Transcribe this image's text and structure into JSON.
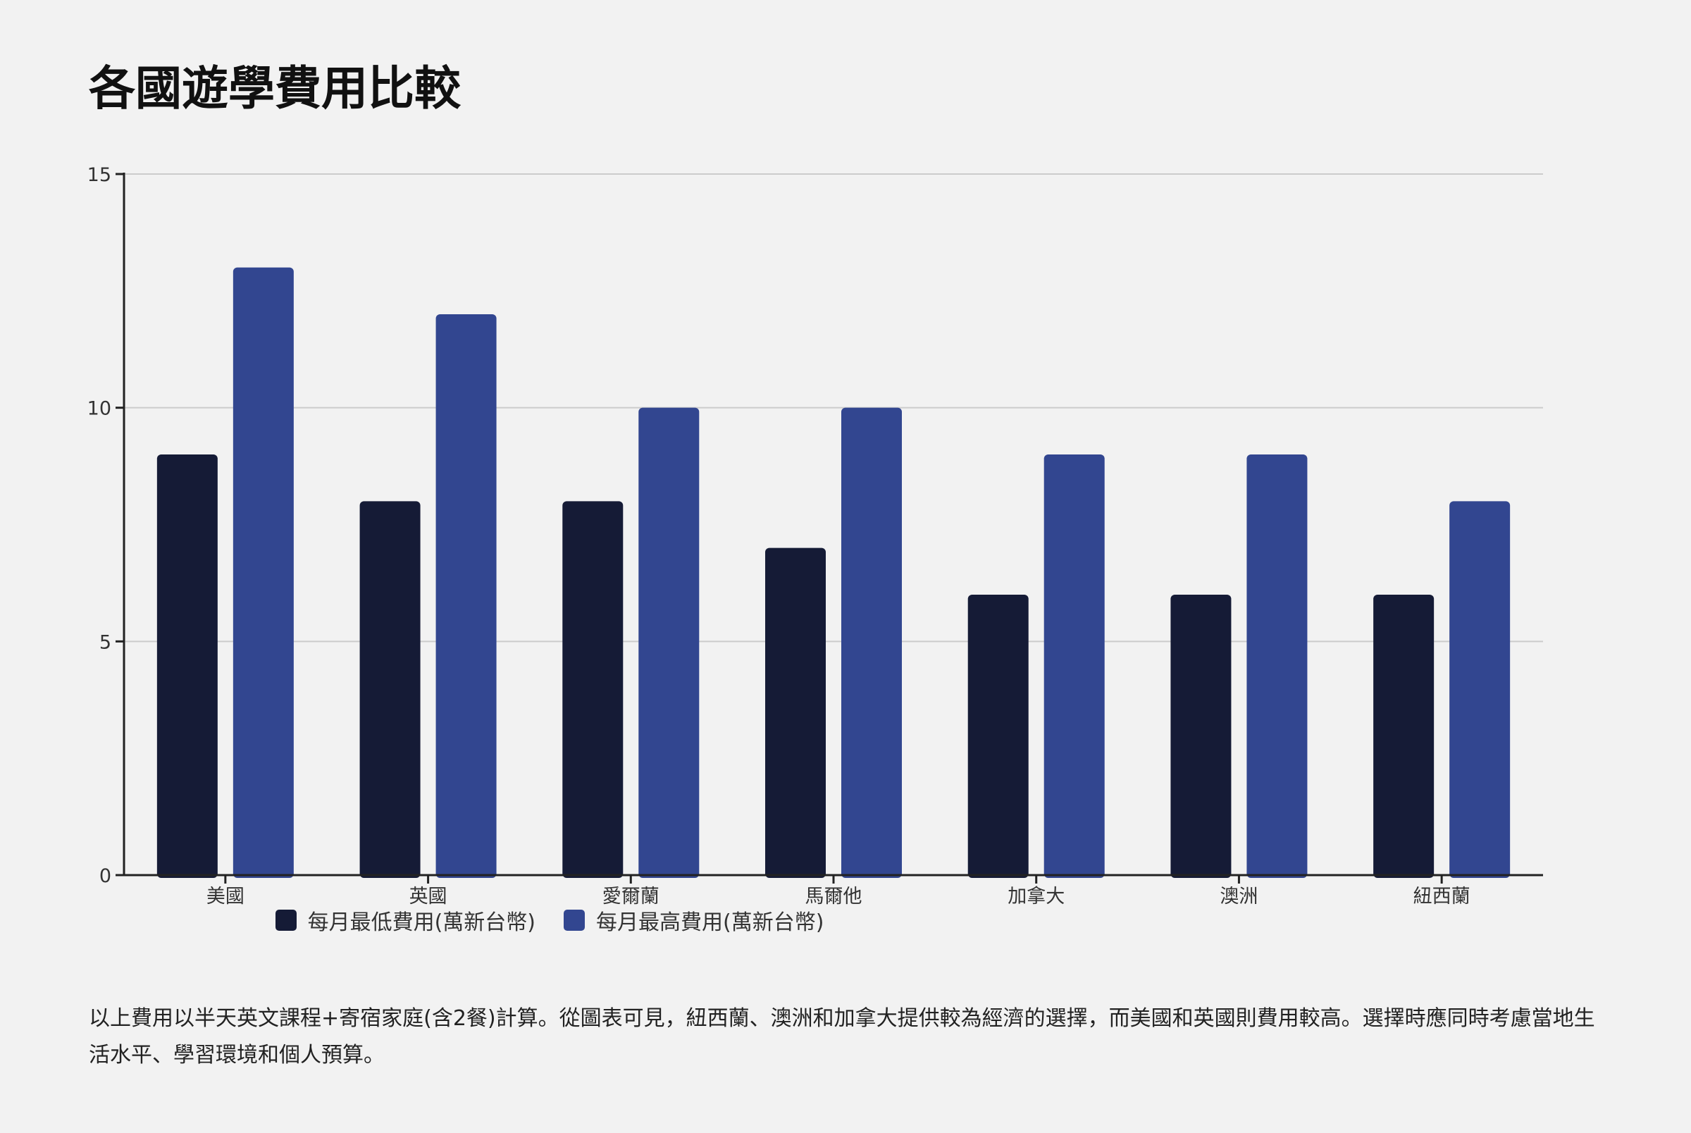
{
  "title": "各國遊學費用比較",
  "note": "以上費用以半天英文課程+寄宿家庭(含2餐)計算。從圖表可見，紐西蘭、澳洲和加拿大提供較為經濟的選擇，而美國和英國則費用較高。選擇時應同時考慮當地生活水平、學習環境和個人預算。",
  "colors": {
    "background": "#f2f2f2",
    "series_min": "#151b36",
    "series_max": "#324690",
    "grid": "#cccccc",
    "axis": "#222222"
  },
  "chart_data": {
    "type": "bar",
    "title": "各國遊學費用比較",
    "xlabel": "",
    "ylabel": "",
    "categories": [
      "美國",
      "英國",
      "愛爾蘭",
      "馬爾他",
      "加拿大",
      "澳洲",
      "紐西蘭"
    ],
    "series": [
      {
        "name": "每月最低費用(萬新台幣)",
        "values": [
          9,
          8,
          8,
          7,
          6,
          6,
          6
        ]
      },
      {
        "name": "每月最高費用(萬新台幣)",
        "values": [
          13,
          12,
          10,
          10,
          9,
          9,
          8
        ]
      }
    ],
    "ylim": [
      0,
      15
    ],
    "yticks": [
      0,
      5,
      10,
      15
    ],
    "grid": true,
    "legend_position": "bottom-center"
  }
}
